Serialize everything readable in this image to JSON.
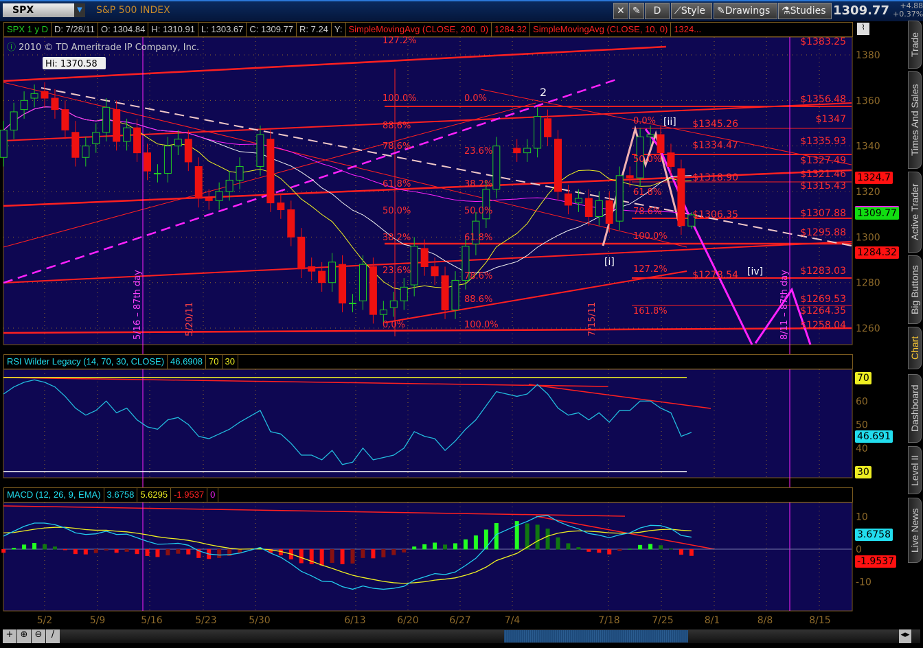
{
  "toolbar": {
    "symbol": "SPX",
    "symbol_name": "S&P 500 INDEX",
    "buttons": {
      "cross": "",
      "pencil": "",
      "period": "D",
      "style": "Style",
      "drawings": "Drawings",
      "studies": "Studies"
    },
    "last_price": "1309.77",
    "change": "+4.88",
    "change_pct": "+0.37%"
  },
  "header": {
    "title": "SPX 1 y D",
    "date": "D: 7/28/11",
    "open": "O: 1304.84",
    "high": "H: 1310.91",
    "low": "L: 1303.67",
    "close": "C: 1309.77",
    "range": "R: 7.24",
    "y": "Y:",
    "sma200": "SimpleMovingAvg (CLOSE, 200, 0)",
    "sma200_val": "1284.32",
    "sma10": "SimpleMovingAvg (CLOSE, 10, 0)",
    "sma10_val": "1324..."
  },
  "copyright": "2010 © TD Ameritrade IP Company, Inc.",
  "annotations": {
    "hi": "Hi: 1370.58",
    "wave2": "2",
    "wave_ii": "[ii]",
    "wave_i": "[i]",
    "wave_iv": "[iv]",
    "v1": "5/16 – 87th day",
    "v2": "5/20/11",
    "v3": "7/15/11",
    "v4": "8/11 – 87th day",
    "fib_left": [
      "127.2%",
      "100.0%",
      "88.6%",
      "78.6%",
      "61.8%",
      "50.0%",
      "38.2%",
      "23.6%",
      "0.0%"
    ],
    "fib_mid": [
      "0.0%",
      "23.6%",
      "38.2%",
      "50.0%",
      "61.8%",
      "78.6%",
      "88.6%",
      "100.0%"
    ],
    "fib_right": [
      "0.0%",
      "50.0%",
      "61.8%",
      "78.6%",
      "100.0%",
      "127.2%",
      "161.8%"
    ],
    "price_tags": [
      "$1383.25",
      "$1356.48",
      "$1347",
      "$1345.26",
      "$1335.93",
      "$1334.47",
      "$1327.49",
      "$1321.46",
      "$1318.90",
      "$1315.43",
      "$1307.88",
      "$1306.35",
      "$1295.88",
      "$1283.03",
      "$1278.54",
      "$1269.53",
      "$1264.35",
      "$1258.04"
    ]
  },
  "price_axis": {
    "ticks": [
      "1380",
      "1360",
      "1340",
      "1320",
      "1300",
      "1280",
      "1260"
    ],
    "sma10_badge": "1324.7",
    "last_badge": "1309.77",
    "sma200_badge": "1284.32"
  },
  "rsi": {
    "label": "RSI Wilder Legacy (14, 70, 30, CLOSE)",
    "value": "46.6908",
    "ob": "70",
    "os": "30",
    "ticks": [
      "60",
      "50",
      "40"
    ],
    "badge": "46.691",
    "ob_badge": "70",
    "os_badge": "30"
  },
  "macd": {
    "label": "MACD (12, 26, 9, EMA)",
    "value": "3.6758",
    "avg": "5.6295",
    "diff": "-1.9537",
    "zero": "0",
    "ticks": [
      "10",
      "0",
      "-10"
    ],
    "badge": "3.6758",
    "diff_badge": "-1.9537"
  },
  "date_axis": [
    "5/2",
    "5/9",
    "5/16",
    "5/23",
    "5/30",
    "6/13",
    "6/20",
    "6/27",
    "7/4",
    "7/18",
    "7/25",
    "8/1",
    "8/8",
    "8/15"
  ],
  "side_tabs": [
    "Trade",
    "Times And Sales",
    "Active Trader",
    "Big Buttons",
    "Chart",
    "Dashboard",
    "Level II",
    "Live News"
  ],
  "colors": {
    "bg": "#0e0752",
    "up": "#22cc22",
    "down": "#ee1111",
    "rsi": "#22bbdd",
    "macd": "#22ccee",
    "signal": "#eeee22",
    "fib": "#ff2222",
    "projection": "#ff22ff"
  },
  "chart_data": {
    "type": "candlestick",
    "ylim": [
      1250,
      1390
    ],
    "dates": [
      "2011-04-26",
      "2011-04-27",
      "2011-04-28",
      "2011-04-29",
      "2011-05-02",
      "2011-05-03",
      "2011-05-04",
      "2011-05-05",
      "2011-05-06",
      "2011-05-09",
      "2011-05-10",
      "2011-05-11",
      "2011-05-12",
      "2011-05-13",
      "2011-05-16",
      "2011-05-17",
      "2011-05-18",
      "2011-05-19",
      "2011-05-20",
      "2011-05-23",
      "2011-05-24",
      "2011-05-25",
      "2011-05-26",
      "2011-05-27",
      "2011-05-31",
      "2011-06-01",
      "2011-06-02",
      "2011-06-03",
      "2011-06-06",
      "2011-06-07",
      "2011-06-08",
      "2011-06-09",
      "2011-06-10",
      "2011-06-13",
      "2011-06-14",
      "2011-06-15",
      "2011-06-16",
      "2011-06-17",
      "2011-06-20",
      "2011-06-21",
      "2011-06-22",
      "2011-06-23",
      "2011-06-24",
      "2011-06-27",
      "2011-06-28",
      "2011-06-29",
      "2011-06-30",
      "2011-07-01",
      "2011-07-05",
      "2011-07-06",
      "2011-07-07",
      "2011-07-08",
      "2011-07-11",
      "2011-07-12",
      "2011-07-13",
      "2011-07-14",
      "2011-07-15",
      "2011-07-18",
      "2011-07-19",
      "2011-07-20",
      "2011-07-21",
      "2011-07-22",
      "2011-07-25",
      "2011-07-26",
      "2011-07-27",
      "2011-07-28"
    ],
    "open": [
      1335,
      1347,
      1356,
      1361,
      1364,
      1361,
      1356,
      1346,
      1335,
      1341,
      1346,
      1356,
      1342,
      1348,
      1337,
      1328,
      1328,
      1340,
      1343,
      1331,
      1317,
      1316,
      1320,
      1325,
      1331,
      1343,
      1315,
      1312,
      1300,
      1287,
      1285,
      1280,
      1288,
      1271,
      1272,
      1287,
      1266,
      1269,
      1272,
      1279,
      1295,
      1287,
      1283,
      1268,
      1281,
      1297,
      1308,
      1321,
      1339,
      1337,
      1339,
      1352,
      1343,
      1319,
      1315,
      1317,
      1309,
      1316,
      1307,
      1327,
      1326,
      1344,
      1345,
      1337,
      1330,
      1304.84
    ],
    "high": [
      1351,
      1359,
      1364,
      1367,
      1368,
      1365,
      1360,
      1351,
      1344,
      1350,
      1361,
      1360,
      1352,
      1352,
      1341,
      1332,
      1344,
      1347,
      1347,
      1335,
      1321,
      1324,
      1329,
      1335,
      1349,
      1347,
      1319,
      1316,
      1304,
      1291,
      1289,
      1293,
      1292,
      1275,
      1292,
      1291,
      1272,
      1276,
      1282,
      1300,
      1299,
      1291,
      1287,
      1285,
      1300,
      1311,
      1325,
      1344,
      1343,
      1343,
      1357,
      1356,
      1347,
      1323,
      1321,
      1321,
      1320,
      1320,
      1331,
      1331,
      1348,
      1349,
      1349,
      1341,
      1334,
      1310.91
    ],
    "low": [
      1331,
      1343,
      1352,
      1357,
      1357,
      1352,
      1343,
      1331,
      1331,
      1337,
      1342,
      1338,
      1338,
      1333,
      1325,
      1324,
      1324,
      1336,
      1329,
      1313,
      1312,
      1312,
      1316,
      1321,
      1327,
      1311,
      1308,
      1296,
      1282,
      1281,
      1276,
      1276,
      1267,
      1267,
      1268,
      1262,
      1262,
      1265,
      1268,
      1274,
      1283,
      1279,
      1264,
      1264,
      1277,
      1292,
      1304,
      1317,
      1333,
      1333,
      1335,
      1340,
      1316,
      1310,
      1311,
      1305,
      1305,
      1302,
      1303,
      1322,
      1322,
      1340,
      1333,
      1327,
      1301,
      1303.67
    ],
    "close": [
      1347,
      1355,
      1360,
      1363,
      1361,
      1356,
      1347,
      1335,
      1340,
      1346,
      1357,
      1342,
      1348,
      1337,
      1329,
      1328,
      1340,
      1343,
      1333,
      1317,
      1316,
      1320,
      1325,
      1331,
      1345,
      1315,
      1312,
      1300,
      1286,
      1285,
      1280,
      1289,
      1271,
      1271,
      1288,
      1266,
      1268,
      1272,
      1278,
      1296,
      1287,
      1283,
      1268,
      1281,
      1296,
      1307,
      1321,
      1340,
      1337,
      1339,
      1353,
      1344,
      1320,
      1314,
      1317,
      1309,
      1316,
      1306,
      1327,
      1326,
      1344,
      1345,
      1337,
      1331,
      1305,
      1309.77
    ],
    "rsi": [
      63,
      66,
      68,
      69,
      68,
      66,
      62,
      57,
      54,
      56,
      60,
      55,
      57,
      52,
      49,
      48,
      52,
      53,
      50,
      45,
      44,
      46,
      48,
      51,
      56,
      47,
      46,
      42,
      37,
      37,
      35,
      39,
      33,
      34,
      40,
      35,
      36,
      37,
      40,
      47,
      45,
      44,
      39,
      43,
      48,
      52,
      58,
      64,
      62,
      63,
      67,
      63,
      57,
      54,
      55,
      52,
      55,
      51,
      56,
      56,
      60,
      60,
      57,
      55,
      45,
      46.69
    ],
    "macd": [
      4,
      5.5,
      7,
      8,
      8,
      7.5,
      6.5,
      5,
      4.5,
      4.7,
      5.5,
      4.5,
      4.6,
      3.5,
      2.4,
      1.5,
      1.6,
      1.8,
      1.2,
      -0.5,
      -1.5,
      -1.8,
      -1.7,
      -1.2,
      0.5,
      -1.2,
      -2.5,
      -4.5,
      -6.8,
      -8.2,
      -9.8,
      -10,
      -11.5,
      -12.3,
      -11.3,
      -12,
      -12.3,
      -12,
      -11.4,
      -9.5,
      -8.5,
      -7.5,
      -7.8,
      -7,
      -5,
      -2.8,
      0.5,
      4.5,
      7.3,
      8.5,
      10,
      10.3,
      8.5,
      7.2,
      6.2,
      4.8,
      4.3,
      3.5,
      4.4,
      5,
      6.5,
      7.3,
      7.2,
      6.3,
      4.2,
      3.68
    ],
    "signal": [
      5,
      5.1,
      5.6,
      6.1,
      6.5,
      6.7,
      6.7,
      6.4,
      6,
      5.8,
      5.8,
      5.5,
      5.3,
      4.9,
      4.4,
      3.8,
      3.4,
      3.1,
      2.7,
      2.1,
      1.4,
      0.8,
      0.3,
      0,
      0.1,
      -0.2,
      -0.7,
      -1.5,
      -2.6,
      -3.7,
      -4.9,
      -5.9,
      -7,
      -8,
      -8.7,
      -9.3,
      -9.9,
      -10.3,
      -10.5,
      -10.3,
      -10,
      -9.5,
      -9.2,
      -8.8,
      -8,
      -7,
      -5.5,
      -3.5,
      -1.3,
      0.6,
      2.5,
      4,
      4.9,
      5.4,
      5.6,
      5.5,
      5.3,
      5,
      4.9,
      4.9,
      5.2,
      5.7,
      6,
      6.1,
      5.8,
      5.63
    ]
  }
}
